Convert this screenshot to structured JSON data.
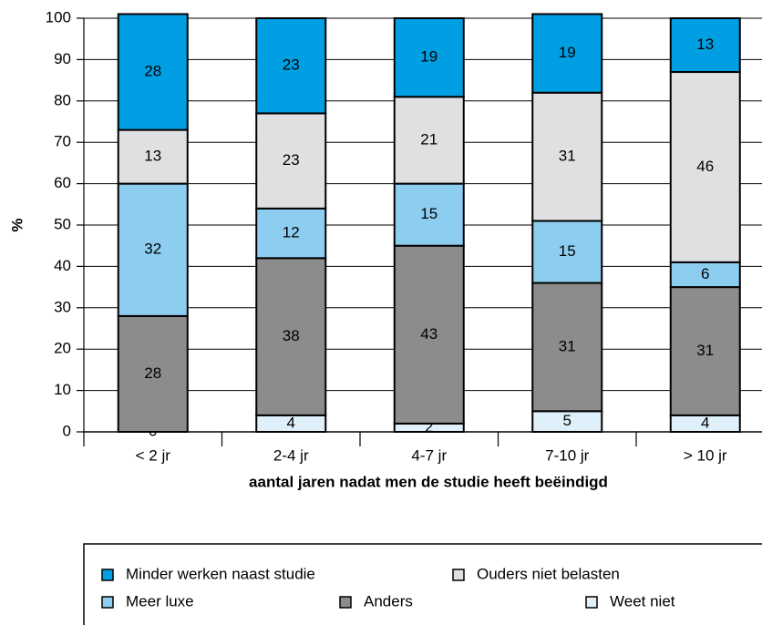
{
  "chart_data": {
    "type": "stacked_bar",
    "ylabel": "%",
    "xlabel": "aantal jaren nadat men de studie heeft beëindigd",
    "categories": [
      "< 2 jr",
      "2-4 jr",
      "4-7 jr",
      "7-10 jr",
      "> 10 jr"
    ],
    "series": [
      {
        "name": "Weet niet",
        "color": "#dff0fb",
        "values": [
          0,
          4,
          2,
          5,
          4
        ]
      },
      {
        "name": "Anders",
        "color": "#8c8c8c",
        "values": [
          28,
          38,
          43,
          31,
          31
        ]
      },
      {
        "name": "Meer luxe",
        "color": "#8dcdf0",
        "values": [
          32,
          12,
          15,
          15,
          6
        ]
      },
      {
        "name": "Ouders niet belasten",
        "color": "#e0e0e3",
        "values": [
          13,
          23,
          21,
          31,
          46
        ]
      },
      {
        "name": "Minder werken naast studie",
        "color": "#009fe3",
        "values": [
          28,
          23,
          19,
          19,
          13
        ]
      }
    ],
    "ylim": [
      0,
      100
    ],
    "yticks": [
      0,
      10,
      20,
      30,
      40,
      50,
      60,
      70,
      80,
      90,
      100
    ],
    "grid": true
  }
}
